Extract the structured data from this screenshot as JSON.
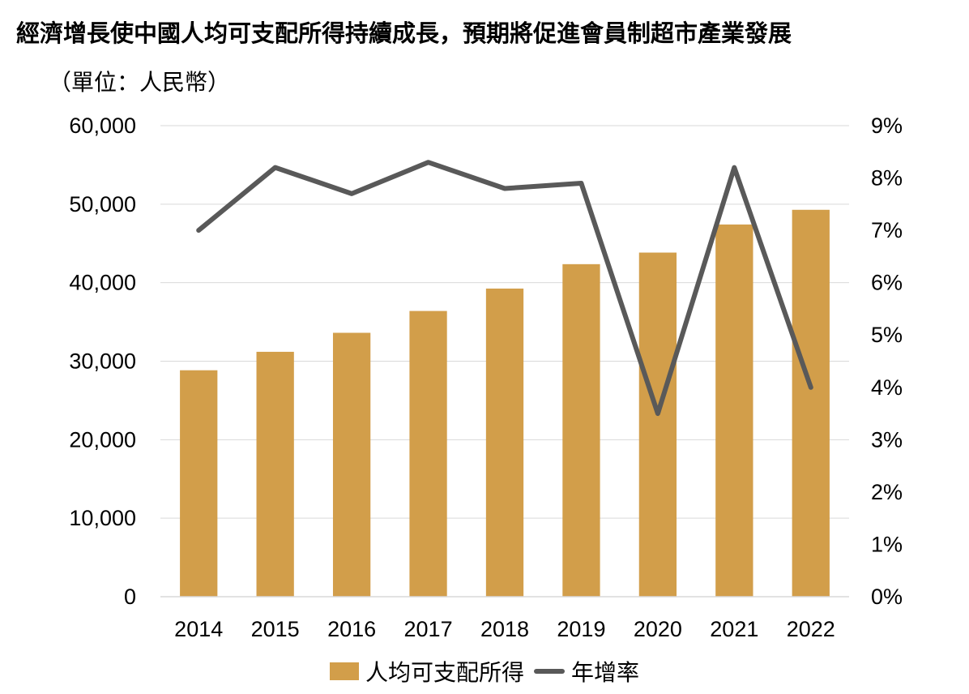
{
  "title": "經濟增長使中國人均可支配所得持續成長，預期將促進會員制超市產業發展",
  "unit": "（單位：人民幣）",
  "colors": {
    "bar": "#D29E4A",
    "line": "#595959",
    "grid": "#D9D9D9"
  },
  "chart_data": {
    "type": "bar",
    "title": "經濟增長使中國人均可支配所得持續成長，預期將促進會員制超市產業發展",
    "unit_label": "（單位：人民幣）",
    "categories": [
      "2014",
      "2015",
      "2016",
      "2017",
      "2018",
      "2019",
      "2020",
      "2021",
      "2022"
    ],
    "series": [
      {
        "name": "人均可支配所得",
        "type": "bar",
        "axis": "left",
        "values": [
          28844,
          31195,
          33616,
          36396,
          39251,
          42359,
          43834,
          47412,
          49283
        ]
      },
      {
        "name": "年增率",
        "type": "line",
        "axis": "right",
        "values": [
          7.0,
          8.2,
          7.7,
          8.3,
          7.8,
          7.9,
          3.5,
          8.2,
          4.0
        ]
      }
    ],
    "y_left": {
      "min": 0,
      "max": 60000,
      "ticks": [
        "0",
        "10,000",
        "20,000",
        "30,000",
        "40,000",
        "50,000",
        "60,000"
      ]
    },
    "y_right": {
      "min": 0,
      "max": 9,
      "ticks": [
        "0%",
        "1%",
        "2%",
        "3%",
        "4%",
        "5%",
        "6%",
        "7%",
        "8%",
        "9%"
      ]
    },
    "grid": true,
    "legend_position": "bottom"
  }
}
